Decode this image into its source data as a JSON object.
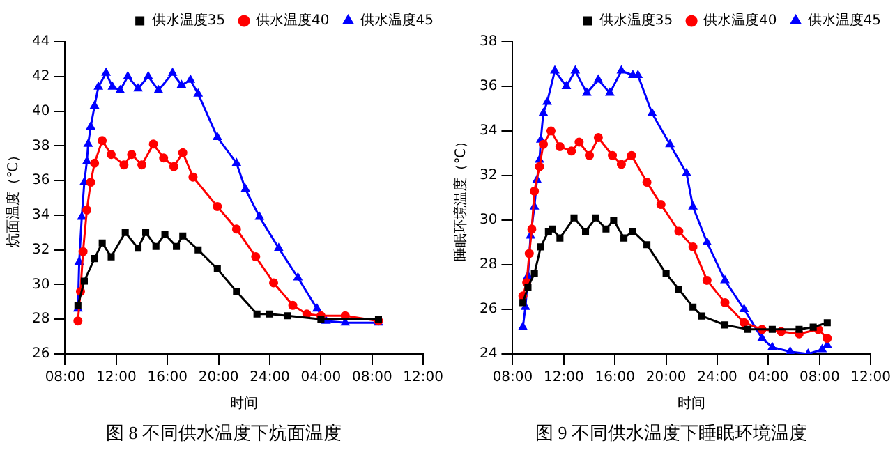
{
  "chart_data": [
    {
      "type": "line",
      "xlabel": "时间",
      "ylabel": "炕面温度（℃）",
      "annotations": [
        "图 8 不同供水温度下炕面温度"
      ],
      "xlim": [
        "2000-01-01T08:00",
        "2000-01-02T12:00"
      ],
      "xticks": [
        {
          "value": "2000-01-01T08:00",
          "label": "08:00"
        },
        {
          "value": "2000-01-01T12:00",
          "label": "12:00"
        },
        {
          "value": "2000-01-01T16:00",
          "label": "16:00"
        },
        {
          "value": "2000-01-01T20:00",
          "label": "20:00"
        },
        {
          "value": "2000-01-02T00:00",
          "label": "24:00"
        },
        {
          "value": "2000-01-02T04:00",
          "label": "04:00"
        },
        {
          "value": "2000-01-02T08:00",
          "label": "08:00"
        },
        {
          "value": "2000-01-02T12:00",
          "label": "12:00"
        }
      ],
      "ylim": [
        26,
        44
      ],
      "yticks": [
        26,
        28,
        30,
        32,
        34,
        36,
        38,
        40,
        42,
        44
      ],
      "grid": false,
      "legend": "top right",
      "series": [
        {
          "name": "供水温度35",
          "color": "#000000",
          "marker": "square",
          "x": [
            "2000-01-01T09:00",
            "2000-01-01T09:30",
            "2000-01-01T10:18",
            "2000-01-01T10:54",
            "2000-01-01T11:36",
            "2000-01-01T12:42",
            "2000-01-01T13:42",
            "2000-01-01T14:18",
            "2000-01-01T15:06",
            "2000-01-01T15:48",
            "2000-01-01T16:42",
            "2000-01-01T17:12",
            "2000-01-01T18:24",
            "2000-01-01T19:54",
            "2000-01-01T21:24",
            "2000-01-01T23:00",
            "2000-01-02T00:00",
            "2000-01-02T01:24",
            "2000-01-02T04:00",
            "2000-01-02T08:30"
          ],
          "values": [
            28.8,
            30.2,
            31.5,
            32.4,
            31.6,
            33.0,
            32.1,
            33.0,
            32.2,
            32.9,
            32.2,
            32.8,
            32.0,
            30.9,
            29.6,
            28.3,
            28.3,
            28.2,
            28.0,
            28.0
          ]
        },
        {
          "name": "供水温度40",
          "color": "#ff0000",
          "marker": "circle",
          "x": [
            "2000-01-01T09:00",
            "2000-01-01T09:12",
            "2000-01-01T09:24",
            "2000-01-01T09:42",
            "2000-01-01T10:00",
            "2000-01-01T10:18",
            "2000-01-01T10:54",
            "2000-01-01T11:36",
            "2000-01-01T12:36",
            "2000-01-01T13:12",
            "2000-01-01T14:00",
            "2000-01-01T14:54",
            "2000-01-01T15:42",
            "2000-01-01T16:30",
            "2000-01-01T17:12",
            "2000-01-01T18:00",
            "2000-01-01T19:54",
            "2000-01-01T21:24",
            "2000-01-01T22:54",
            "2000-01-02T00:18",
            "2000-01-02T01:48",
            "2000-01-02T02:54",
            "2000-01-02T04:00",
            "2000-01-02T05:54",
            "2000-01-02T08:30"
          ],
          "values": [
            27.9,
            29.6,
            31.9,
            34.3,
            35.9,
            37.0,
            38.3,
            37.5,
            36.9,
            37.5,
            36.9,
            38.1,
            37.3,
            36.8,
            37.6,
            36.2,
            34.5,
            33.2,
            31.6,
            30.1,
            28.8,
            28.3,
            28.2,
            28.2,
            27.9
          ]
        },
        {
          "name": "供水温度45",
          "color": "#0000ff",
          "marker": "triangle",
          "x": [
            "2000-01-01T09:00",
            "2000-01-01T09:06",
            "2000-01-01T09:18",
            "2000-01-01T09:30",
            "2000-01-01T09:42",
            "2000-01-01T09:48",
            "2000-01-01T10:00",
            "2000-01-01T10:18",
            "2000-01-01T10:36",
            "2000-01-01T11:12",
            "2000-01-01T11:42",
            "2000-01-01T12:18",
            "2000-01-01T12:54",
            "2000-01-01T13:42",
            "2000-01-01T14:30",
            "2000-01-01T15:18",
            "2000-01-01T16:24",
            "2000-01-01T17:06",
            "2000-01-01T17:48",
            "2000-01-01T18:24",
            "2000-01-01T19:54",
            "2000-01-01T21:24",
            "2000-01-01T22:06",
            "2000-01-01T23:12",
            "2000-01-02T00:42",
            "2000-01-02T02:12",
            "2000-01-02T03:42",
            "2000-01-02T04:24",
            "2000-01-02T05:54",
            "2000-01-02T08:30"
          ],
          "values": [
            28.6,
            31.3,
            33.9,
            35.9,
            37.1,
            38.1,
            39.1,
            40.3,
            41.4,
            42.2,
            41.4,
            41.2,
            42.0,
            41.3,
            42.0,
            41.2,
            42.2,
            41.5,
            41.8,
            41.0,
            38.5,
            37.0,
            35.5,
            33.9,
            32.1,
            30.4,
            28.6,
            27.9,
            27.8,
            27.8
          ]
        }
      ]
    },
    {
      "type": "line",
      "xlabel": "时间",
      "ylabel": "睡眠环境温度（℃）",
      "annotations": [
        "图 9 不同供水温度下睡眠环境温度"
      ],
      "xlim": [
        "2000-01-01T08:00",
        "2000-01-02T12:00"
      ],
      "xticks": [
        {
          "value": "2000-01-01T08:00",
          "label": "08:00"
        },
        {
          "value": "2000-01-01T12:00",
          "label": "12:00"
        },
        {
          "value": "2000-01-01T16:00",
          "label": "16:00"
        },
        {
          "value": "2000-01-01T20:00",
          "label": "20:00"
        },
        {
          "value": "2000-01-02T00:00",
          "label": "24:00"
        },
        {
          "value": "2000-01-02T04:00",
          "label": "04:00"
        },
        {
          "value": "2000-01-02T08:00",
          "label": "08:00"
        },
        {
          "value": "2000-01-02T12:00",
          "label": "12:00"
        }
      ],
      "ylim": [
        24,
        38
      ],
      "yticks": [
        24,
        26,
        28,
        30,
        32,
        34,
        36,
        38
      ],
      "grid": false,
      "legend": "top right",
      "series": [
        {
          "name": "供水温度35",
          "color": "#000000",
          "marker": "square",
          "x": [
            "2000-01-01T08:48",
            "2000-01-01T09:12",
            "2000-01-01T09:42",
            "2000-01-01T10:12",
            "2000-01-01T10:48",
            "2000-01-01T11:06",
            "2000-01-01T11:42",
            "2000-01-01T12:48",
            "2000-01-01T13:42",
            "2000-01-01T14:30",
            "2000-01-01T15:18",
            "2000-01-01T15:54",
            "2000-01-01T16:42",
            "2000-01-01T17:24",
            "2000-01-01T18:30",
            "2000-01-01T20:00",
            "2000-01-01T21:00",
            "2000-01-01T22:06",
            "2000-01-01T22:48",
            "2000-01-02T00:36",
            "2000-01-02T02:24",
            "2000-01-02T04:18",
            "2000-01-02T06:24",
            "2000-01-02T07:30",
            "2000-01-02T08:36"
          ],
          "values": [
            26.3,
            27.0,
            27.6,
            28.8,
            29.5,
            29.6,
            29.2,
            30.1,
            29.5,
            30.1,
            29.6,
            30.0,
            29.2,
            29.5,
            28.9,
            27.6,
            26.9,
            26.1,
            25.7,
            25.3,
            25.1,
            25.1,
            25.1,
            25.2,
            25.4
          ]
        },
        {
          "name": "供水温度40",
          "color": "#ff0000",
          "marker": "circle",
          "x": [
            "2000-01-01T08:48",
            "2000-01-01T09:06",
            "2000-01-01T09:18",
            "2000-01-01T09:30",
            "2000-01-01T09:42",
            "2000-01-01T10:06",
            "2000-01-01T10:24",
            "2000-01-01T11:00",
            "2000-01-01T11:42",
            "2000-01-01T12:36",
            "2000-01-01T13:12",
            "2000-01-01T14:00",
            "2000-01-01T14:42",
            "2000-01-01T15:48",
            "2000-01-01T16:30",
            "2000-01-01T17:18",
            "2000-01-01T18:30",
            "2000-01-01T19:36",
            "2000-01-01T21:00",
            "2000-01-01T22:06",
            "2000-01-01T23:12",
            "2000-01-02T00:36",
            "2000-01-02T02:06",
            "2000-01-02T03:30",
            "2000-01-02T05:00",
            "2000-01-02T06:24",
            "2000-01-02T07:54",
            "2000-01-02T08:36"
          ],
          "values": [
            26.6,
            27.2,
            28.5,
            29.6,
            31.3,
            32.4,
            33.4,
            34.0,
            33.3,
            33.1,
            33.5,
            32.9,
            33.7,
            32.9,
            32.5,
            32.9,
            31.7,
            30.7,
            29.5,
            28.8,
            27.3,
            26.3,
            25.4,
            25.1,
            25.0,
            24.9,
            25.1,
            24.7
          ]
        },
        {
          "name": "供水温度45",
          "color": "#0000ff",
          "marker": "triangle",
          "x": [
            "2000-01-01T08:48",
            "2000-01-01T09:00",
            "2000-01-01T09:12",
            "2000-01-01T09:24",
            "2000-01-01T09:42",
            "2000-01-01T09:54",
            "2000-01-01T10:06",
            "2000-01-01T10:12",
            "2000-01-01T10:24",
            "2000-01-01T10:42",
            "2000-01-01T11:18",
            "2000-01-01T12:12",
            "2000-01-01T12:54",
            "2000-01-01T13:48",
            "2000-01-01T14:42",
            "2000-01-01T15:36",
            "2000-01-01T16:30",
            "2000-01-01T17:24",
            "2000-01-01T17:48",
            "2000-01-01T18:54",
            "2000-01-01T20:18",
            "2000-01-01T21:36",
            "2000-01-01T22:06",
            "2000-01-01T23:12",
            "2000-01-02T00:36",
            "2000-01-02T02:06",
            "2000-01-02T03:30",
            "2000-01-02T04:18",
            "2000-01-02T05:42",
            "2000-01-02T07:06",
            "2000-01-02T08:12",
            "2000-01-02T08:36"
          ],
          "values": [
            25.2,
            26.1,
            27.5,
            29.3,
            30.6,
            31.8,
            32.7,
            33.6,
            34.8,
            35.3,
            36.7,
            36.0,
            36.7,
            35.7,
            36.3,
            35.7,
            36.7,
            36.5,
            36.5,
            34.8,
            33.4,
            32.1,
            30.6,
            29.0,
            27.3,
            26.0,
            24.7,
            24.3,
            24.1,
            24.0,
            24.2,
            24.4
          ]
        }
      ]
    }
  ]
}
